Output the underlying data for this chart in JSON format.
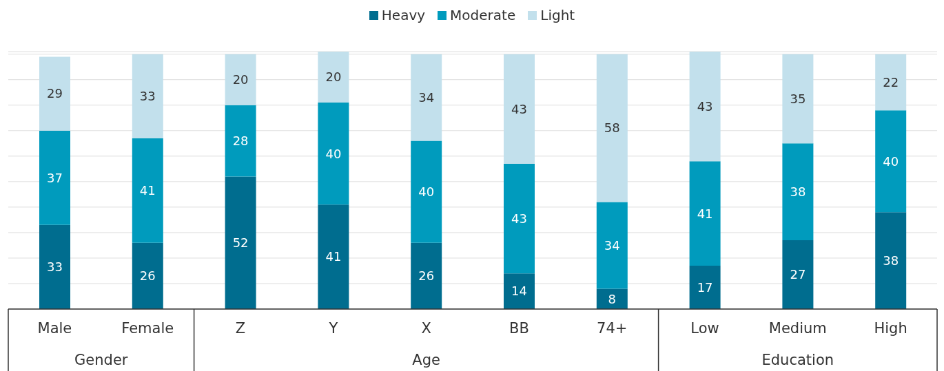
{
  "chart_data": {
    "type": "bar",
    "stacked": true,
    "data_labels": true,
    "grid": "y",
    "legend": "top",
    "tick_labels": "x",
    "categories": [
      "Male",
      "Female",
      "Z",
      "Y",
      "X",
      "BB",
      "74+",
      "Low",
      "Medium",
      "High"
    ],
    "ylim": [
      0,
      101
    ],
    "yticks": [
      {
        "value": 0,
        "label": null
      },
      {
        "value": 10,
        "label": null
      },
      {
        "value": 20,
        "label": null
      },
      {
        "value": 30,
        "label": null
      },
      {
        "value": 40,
        "label": null
      },
      {
        "value": 50,
        "label": null
      },
      {
        "value": 60,
        "label": null
      },
      {
        "value": 70,
        "label": null
      },
      {
        "value": 80,
        "label": null
      },
      {
        "value": 90,
        "label": null
      },
      {
        "value": 100,
        "label": null
      }
    ],
    "series": [
      {
        "name": "Heavy",
        "color": "#006d8f",
        "values": [
          33,
          26,
          52,
          41,
          26,
          14,
          8,
          17,
          27,
          38
        ]
      },
      {
        "name": "Moderate",
        "color": "#009bbd",
        "values": [
          37,
          41,
          28,
          40,
          40,
          43,
          34,
          41,
          38,
          40
        ]
      },
      {
        "name": "Light",
        "color": "#c2e0ec",
        "values": [
          29,
          33,
          20,
          20,
          34,
          43,
          58,
          43,
          35,
          22
        ]
      }
    ],
    "annotations": [
      "Gender",
      "Age",
      "Education"
    ]
  }
}
